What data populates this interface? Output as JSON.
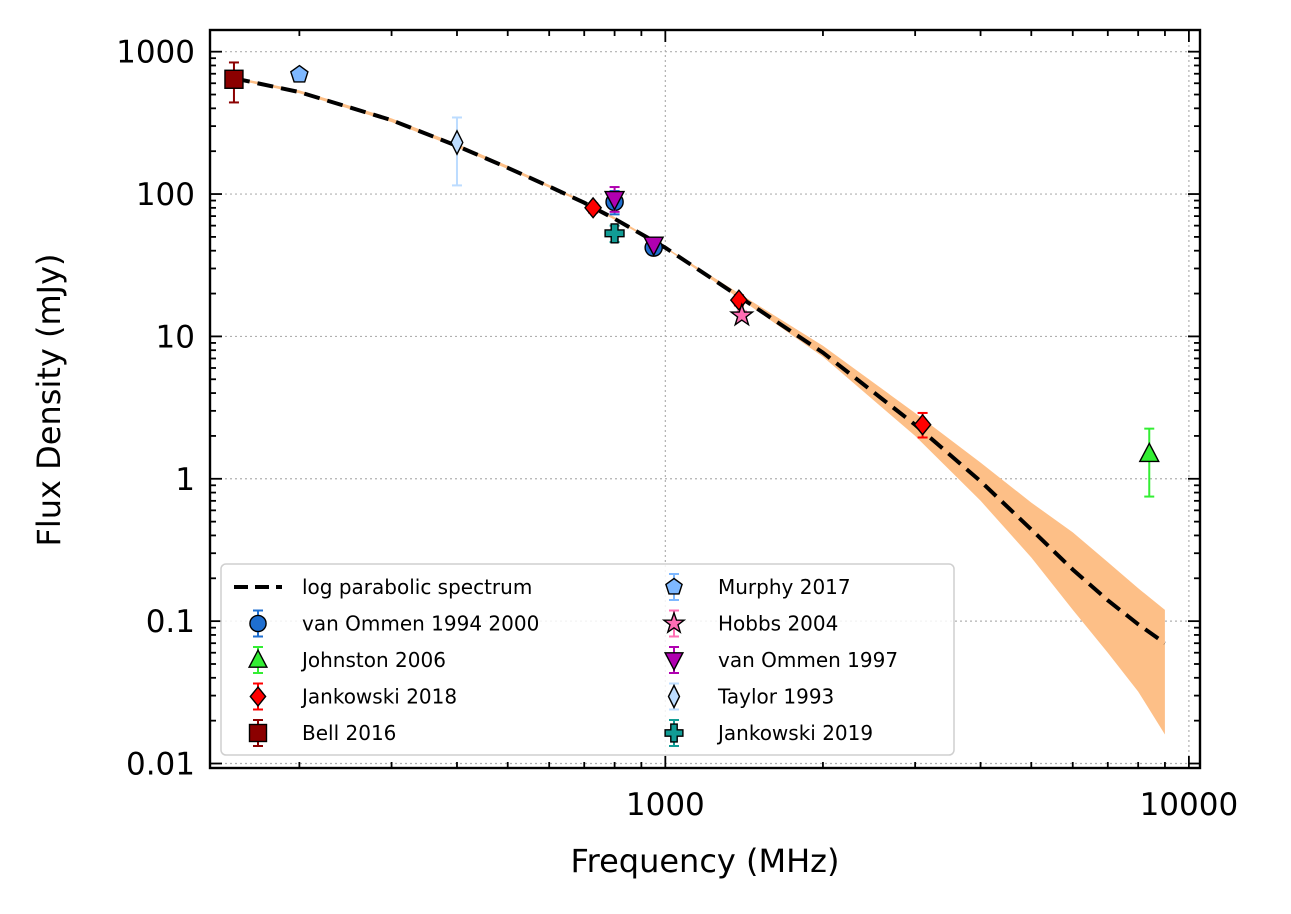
{
  "chart_data": {
    "type": "scatter",
    "title": "",
    "xlabel": "Frequency (MHz)",
    "ylabel": "Flux Density (mJy)",
    "x_scale": "log",
    "y_scale": "log",
    "xlim": [
      135,
      10500
    ],
    "ylim": [
      0.0093,
      1420
    ],
    "grid": true,
    "legend_position": "lower-left",
    "x_ticks": [
      {
        "value": 1000,
        "label": "1000"
      },
      {
        "value": 10000,
        "label": "10000"
      }
    ],
    "y_ticks": [
      {
        "value": 1000,
        "label": "1000"
      },
      {
        "value": 100,
        "label": "100"
      },
      {
        "value": 10,
        "label": "10"
      },
      {
        "value": 1,
        "label": "1"
      },
      {
        "value": 0.1,
        "label": "0.1"
      },
      {
        "value": 0.01,
        "label": "0.01"
      }
    ],
    "model": {
      "name": "log parabolic spectrum",
      "x": [
        150,
        200,
        300,
        400,
        500,
        600,
        700,
        800,
        1000,
        1400,
        2000,
        3000,
        4000,
        5000,
        6000,
        7000,
        8000,
        9000
      ],
      "y": [
        650,
        520,
        330,
        218,
        153,
        113,
        87,
        67,
        42,
        18.5,
        7.7,
        2.4,
        0.96,
        0.44,
        0.23,
        0.14,
        0.095,
        0.07
      ],
      "band_lower": [
        640,
        510,
        320,
        212,
        150,
        111,
        86,
        66,
        41.5,
        18,
        7.2,
        2.0,
        0.7,
        0.28,
        0.12,
        0.06,
        0.032,
        0.016
      ],
      "band_upper": [
        665,
        535,
        340,
        225,
        158,
        116,
        89,
        69,
        42.5,
        19.5,
        8.6,
        2.9,
        1.3,
        0.68,
        0.42,
        0.26,
        0.17,
        0.12
      ],
      "color": "#000000",
      "band_color": "#fdbf87"
    },
    "series": [
      {
        "name": "van Ommen 1994 2000",
        "marker": "circle",
        "color": "#1f6fd0",
        "points": [
          {
            "x": 800,
            "y": 88,
            "err_low": 72,
            "err_high": 105
          },
          {
            "x": 950,
            "y": 42,
            "err_low": 38,
            "err_high": 46
          }
        ]
      },
      {
        "name": "Johnston 2006",
        "marker": "triangle-up",
        "color": "#33ee33",
        "points": [
          {
            "x": 8400,
            "y": 1.5,
            "err_low": 0.75,
            "err_high": 2.25
          }
        ]
      },
      {
        "name": "Jankowski 2018",
        "marker": "diamond",
        "color": "#ff0000",
        "points": [
          {
            "x": 728,
            "y": 80,
            "err_low": 74,
            "err_high": 86
          },
          {
            "x": 1382,
            "y": 18,
            "err_low": 16.5,
            "err_high": 19.5
          },
          {
            "x": 3100,
            "y": 2.4,
            "err_low": 1.95,
            "err_high": 2.9
          }
        ]
      },
      {
        "name": "Bell 2016",
        "marker": "square",
        "color": "#8b0000",
        "points": [
          {
            "x": 150,
            "y": 640,
            "err_low": 440,
            "err_high": 840
          }
        ]
      },
      {
        "name": "Murphy 2017",
        "marker": "pentagon",
        "color": "#7eb8ff",
        "points": [
          {
            "x": 200,
            "y": 690,
            "err_low": 650,
            "err_high": 730
          }
        ]
      },
      {
        "name": "Hobbs 2004",
        "marker": "star",
        "color": "#ff6eb4",
        "points": [
          {
            "x": 1400,
            "y": 14,
            "err_low": 13,
            "err_high": 15
          }
        ]
      },
      {
        "name": "van Ommen 1997",
        "marker": "triangle-down",
        "color": "#b000b0",
        "points": [
          {
            "x": 800,
            "y": 92,
            "err_low": 75,
            "err_high": 112
          },
          {
            "x": 950,
            "y": 44,
            "err_low": 42,
            "err_high": 46
          }
        ]
      },
      {
        "name": "Taylor 1993",
        "marker": "thin-diamond",
        "color": "#bcdcff",
        "points": [
          {
            "x": 400,
            "y": 230,
            "err_low": 115,
            "err_high": 345
          }
        ]
      },
      {
        "name": "Jankowski 2019",
        "marker": "plus",
        "color": "#119c95",
        "points": [
          {
            "x": 800,
            "y": 53,
            "err_low": 46,
            "err_high": 60
          }
        ]
      }
    ]
  }
}
